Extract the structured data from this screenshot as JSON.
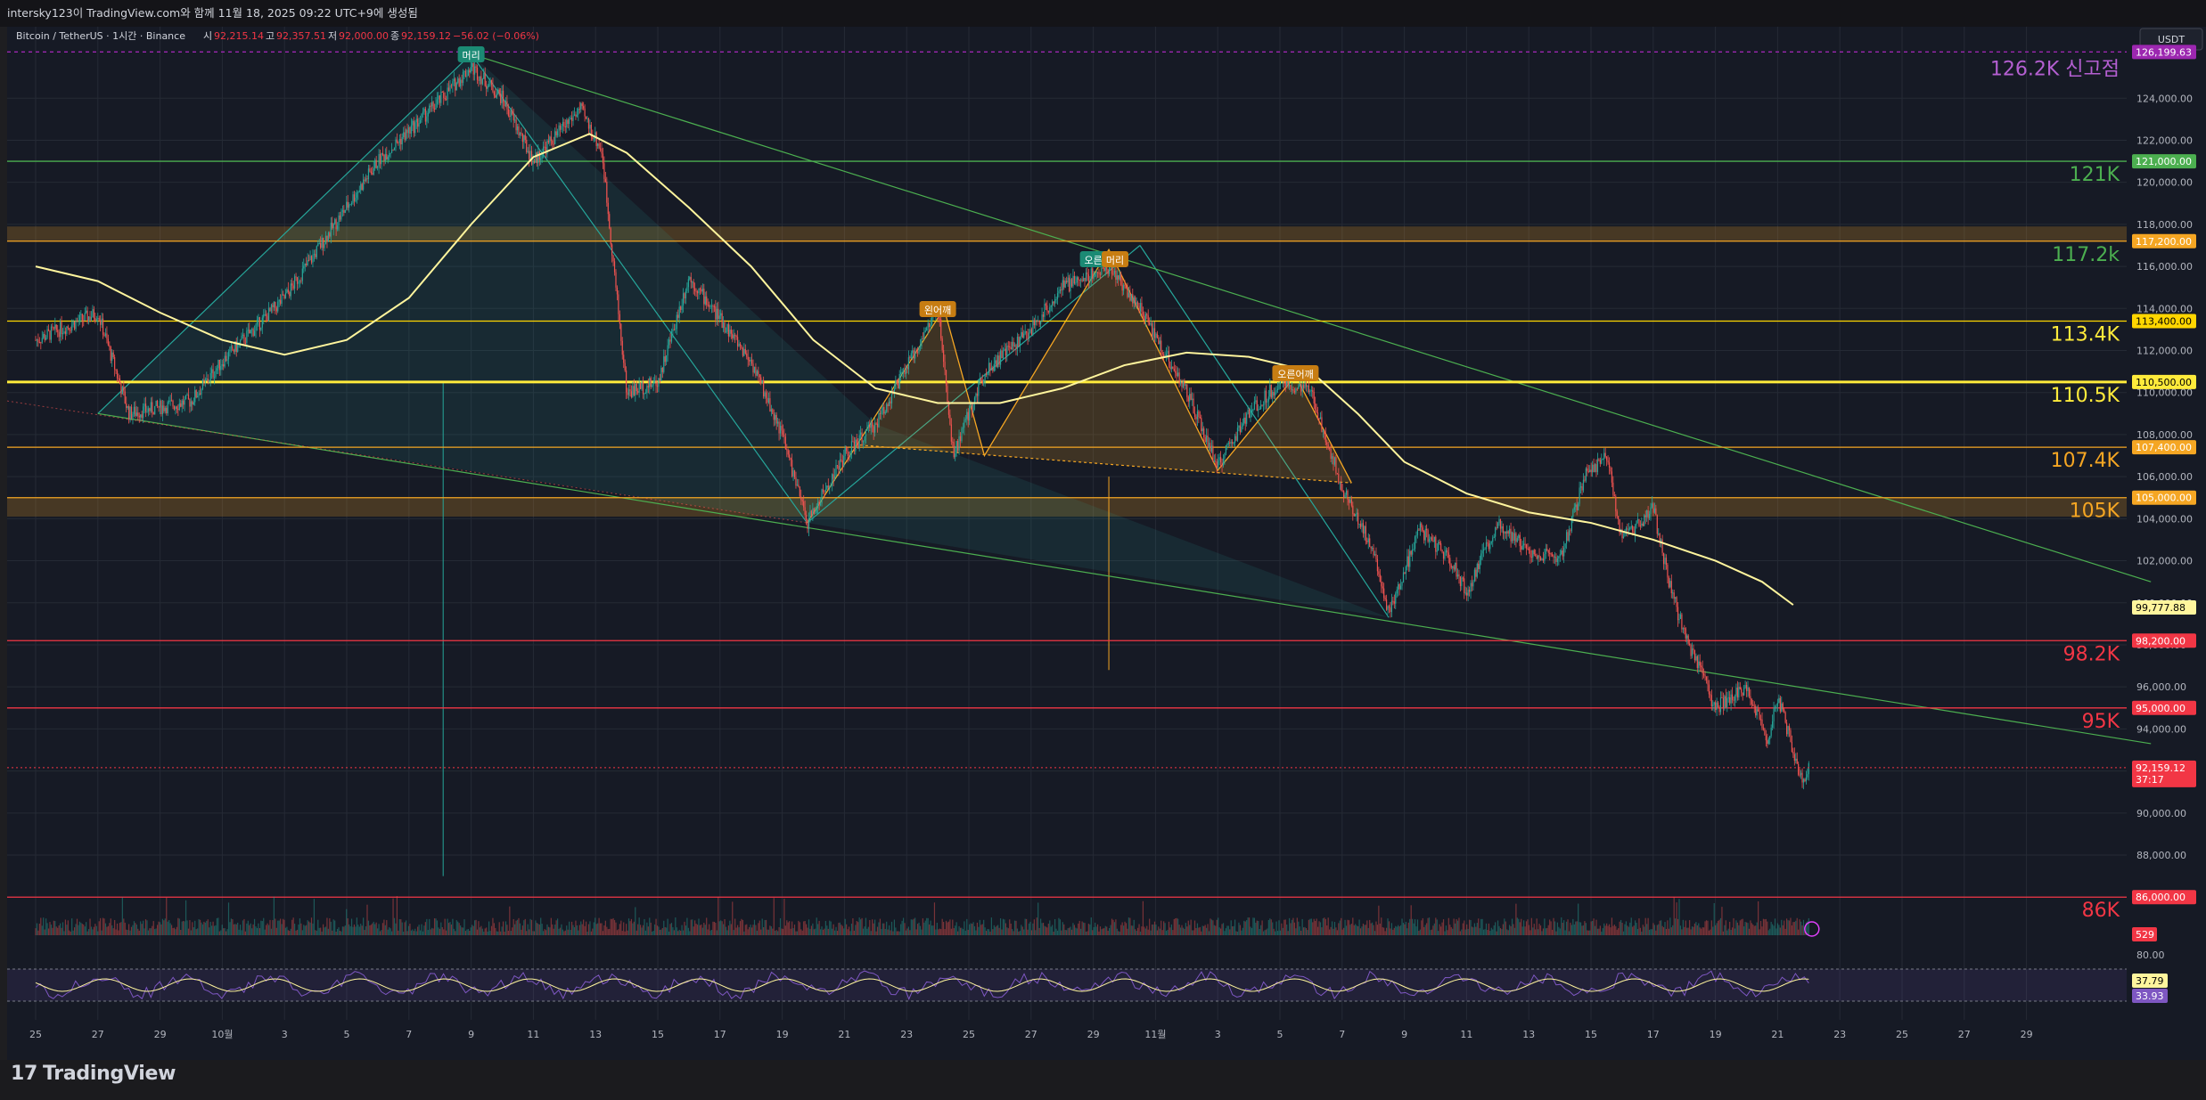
{
  "header": {
    "text": "intersky123이 TradingView.com와 함께 11월 18, 2025 09:22 UTC+9에 생성됨"
  },
  "symbol": {
    "name": "Bitcoin / TetherUS · 1시간 · Binance",
    "o_label": "시",
    "o_value": "92,215.14",
    "h_label": "고",
    "h_value": "92,357.51",
    "l_label": "저",
    "l_value": "92,000.00",
    "c_label": "종",
    "c_value": "92,159.12",
    "change": "−56.02 (−0.06%)"
  },
  "currency": "USDT",
  "footer": {
    "logo": "TradingView"
  },
  "colors": {
    "bg": "#161a25",
    "grid": "#252a35",
    "up": "#26a69a",
    "down": "#ef5350",
    "ma": "#fff59d",
    "gold": "#f5a623",
    "yellow": "#ffeb3b",
    "green": "#4caf50",
    "red": "#f23645",
    "purple": "#9c27b0",
    "rsi": "#7e57c2"
  },
  "chart_data": {
    "type": "candlestick",
    "ylim": [
      85000,
      127000
    ],
    "y_ticks": [
      "124,000.00",
      "122,000.00",
      "120,000.00",
      "118,000.00",
      "116,000.00",
      "114,000.00",
      "112,000.00",
      "110,000.00",
      "108,000.00",
      "106,000.00",
      "104,000.00",
      "102,000.00",
      "100,000.00",
      "98,000.00",
      "96,000.00",
      "94,000.00",
      "92,000.00",
      "90,000.00",
      "88,000.00",
      "86,000.00"
    ],
    "x_ticks": [
      "25",
      "27",
      "29",
      "10월",
      "3",
      "5",
      "7",
      "9",
      "11",
      "13",
      "15",
      "17",
      "19",
      "21",
      "23",
      "25",
      "27",
      "29",
      "11월",
      "3",
      "5",
      "7",
      "9",
      "11",
      "13",
      "15",
      "17",
      "19",
      "21",
      "23",
      "25",
      "27",
      "29"
    ],
    "x_labels": [
      25,
      27,
      29,
      1,
      3,
      5,
      7,
      9,
      11,
      13,
      15,
      17,
      19,
      21,
      23,
      25,
      27,
      29,
      1,
      3,
      5,
      7,
      9,
      11,
      13,
      15,
      17,
      19,
      21,
      23,
      25,
      27,
      29
    ],
    "key_prices": [
      {
        "x": 0.0,
        "y": 112500
      },
      {
        "x": 2.0,
        "y": 113800
      },
      {
        "x": 3.0,
        "y": 109000
      },
      {
        "x": 5.0,
        "y": 109600
      },
      {
        "x": 6.0,
        "y": 111500
      },
      {
        "x": 8.0,
        "y": 114500
      },
      {
        "x": 11.0,
        "y": 121000
      },
      {
        "x": 12.8,
        "y": 123600
      },
      {
        "x": 14.0,
        "y": 125500
      },
      {
        "x": 15.0,
        "y": 124000
      },
      {
        "x": 16.0,
        "y": 121000
      },
      {
        "x": 17.5,
        "y": 123500
      },
      {
        "x": 18.2,
        "y": 121500
      },
      {
        "x": 19.0,
        "y": 110000
      },
      {
        "x": 20.0,
        "y": 110500
      },
      {
        "x": 21.0,
        "y": 115500
      },
      {
        "x": 22.0,
        "y": 113500
      },
      {
        "x": 23.0,
        "y": 111500
      },
      {
        "x": 24.0,
        "y": 108000
      },
      {
        "x": 24.8,
        "y": 103800
      },
      {
        "x": 26.0,
        "y": 107000
      },
      {
        "x": 27.0,
        "y": 108500
      },
      {
        "x": 28.0,
        "y": 111200
      },
      {
        "x": 29.0,
        "y": 114000
      },
      {
        "x": 29.5,
        "y": 107000
      },
      {
        "x": 30.5,
        "y": 111000
      },
      {
        "x": 32.0,
        "y": 113000
      },
      {
        "x": 33.0,
        "y": 115000
      },
      {
        "x": 34.5,
        "y": 116000
      },
      {
        "x": 35.5,
        "y": 114000
      },
      {
        "x": 37.0,
        "y": 110000
      },
      {
        "x": 38.0,
        "y": 106500
      },
      {
        "x": 39.0,
        "y": 109000
      },
      {
        "x": 40.0,
        "y": 110500
      },
      {
        "x": 41.0,
        "y": 110000
      },
      {
        "x": 42.0,
        "y": 105500
      },
      {
        "x": 43.0,
        "y": 102500
      },
      {
        "x": 43.5,
        "y": 99500
      },
      {
        "x": 44.5,
        "y": 103500
      },
      {
        "x": 45.5,
        "y": 102000
      },
      {
        "x": 46.0,
        "y": 100500
      },
      {
        "x": 47.0,
        "y": 103800
      },
      {
        "x": 48.0,
        "y": 102500
      },
      {
        "x": 49.0,
        "y": 102000
      },
      {
        "x": 49.8,
        "y": 106000
      },
      {
        "x": 50.5,
        "y": 107000
      },
      {
        "x": 51.0,
        "y": 103000
      },
      {
        "x": 52.0,
        "y": 104500
      },
      {
        "x": 52.5,
        "y": 101000
      },
      {
        "x": 53.0,
        "y": 98500
      },
      {
        "x": 54.0,
        "y": 95000
      },
      {
        "x": 55.0,
        "y": 96000
      },
      {
        "x": 55.7,
        "y": 93500
      },
      {
        "x": 56.0,
        "y": 95500
      },
      {
        "x": 56.8,
        "y": 91500
      },
      {
        "x": 57.0,
        "y": 92159
      }
    ],
    "ma_line": [
      {
        "x": 0.0,
        "y": 116000
      },
      {
        "x": 2.0,
        "y": 115300
      },
      {
        "x": 4.0,
        "y": 113800
      },
      {
        "x": 6.0,
        "y": 112500
      },
      {
        "x": 8.0,
        "y": 111800
      },
      {
        "x": 10.0,
        "y": 112500
      },
      {
        "x": 12.0,
        "y": 114500
      },
      {
        "x": 14.0,
        "y": 118000
      },
      {
        "x": 16.0,
        "y": 121200
      },
      {
        "x": 17.8,
        "y": 122300
      },
      {
        "x": 19.0,
        "y": 121400
      },
      {
        "x": 21.0,
        "y": 118800
      },
      {
        "x": 23.0,
        "y": 116000
      },
      {
        "x": 25.0,
        "y": 112500
      },
      {
        "x": 27.0,
        "y": 110200
      },
      {
        "x": 29.0,
        "y": 109500
      },
      {
        "x": 31.0,
        "y": 109500
      },
      {
        "x": 33.0,
        "y": 110200
      },
      {
        "x": 35.0,
        "y": 111300
      },
      {
        "x": 37.0,
        "y": 111900
      },
      {
        "x": 39.0,
        "y": 111700
      },
      {
        "x": 41.0,
        "y": 111000
      },
      {
        "x": 42.5,
        "y": 109000
      },
      {
        "x": 44.0,
        "y": 106700
      },
      {
        "x": 46.0,
        "y": 105200
      },
      {
        "x": 48.0,
        "y": 104300
      },
      {
        "x": 50.0,
        "y": 103800
      },
      {
        "x": 52.0,
        "y": 103000
      },
      {
        "x": 54.0,
        "y": 102000
      },
      {
        "x": 55.5,
        "y": 101000
      },
      {
        "x": 56.5,
        "y": 99900
      }
    ],
    "hlines": [
      {
        "price": 126199.63,
        "value_label": "126,199.63",
        "color": "#9c27b0",
        "dashed": true,
        "text": "126.2K 신고점",
        "text_color": "#b45fd1"
      },
      {
        "price": 121000,
        "value_label": "121,000.00",
        "color": "#4caf50",
        "text": "121K",
        "text_color": "#4caf50"
      },
      {
        "price": 117200,
        "value_label": "117,200.00",
        "color": "#f5a623",
        "text": "117.2k",
        "text_color": "#4caf50"
      },
      {
        "price": 113400,
        "value_label": "113,400.00",
        "color": "#ffd600",
        "text": "113.4K",
        "text_color": "#ffeb3b"
      },
      {
        "price": 110500,
        "value_label": "110,500.00",
        "color": "#ffeb3b",
        "thick": true,
        "text": "110.5K",
        "text_color": "#ffeb3b"
      },
      {
        "price": 107400,
        "value_label": "107,400.00",
        "color": "#f5a623",
        "text": "107.4K",
        "text_color": "#f5a623"
      },
      {
        "price": 105000,
        "value_label": "105,000.00",
        "color": "#f5a623",
        "text": "105K",
        "text_color": "#f5a623"
      },
      {
        "price": 98200,
        "value_label": "98,200.00",
        "color": "#f23645",
        "text": "98.2K",
        "text_color": "#f23645"
      },
      {
        "price": 95000,
        "value_label": "95,000.00",
        "color": "#f23645",
        "text": "95K",
        "text_color": "#f23645"
      },
      {
        "price": 86000,
        "value_label": "86,000.00",
        "color": "#f23645",
        "text": "86K",
        "text_color": "#f23645"
      }
    ],
    "zones": [
      {
        "top": 117900,
        "bottom": 117200,
        "color": "#f5a623"
      },
      {
        "top": 105000,
        "bottom": 104100,
        "color": "#f5a623"
      }
    ],
    "ma_value_label": "99,777.88",
    "last_price": "92,159.12",
    "countdown": "37:17",
    "volume_label": "529",
    "patterns": {
      "left_label": "머리",
      "center_label_1": "오른",
      "center_label_2": "머리",
      "left_shoulder": "왼어깨",
      "right_shoulder": "오른어깨"
    },
    "rsi": {
      "ylim": [
        0,
        100
      ],
      "ticks": [
        "80.00"
      ],
      "value1": "37.79",
      "value2": "33.93"
    }
  }
}
